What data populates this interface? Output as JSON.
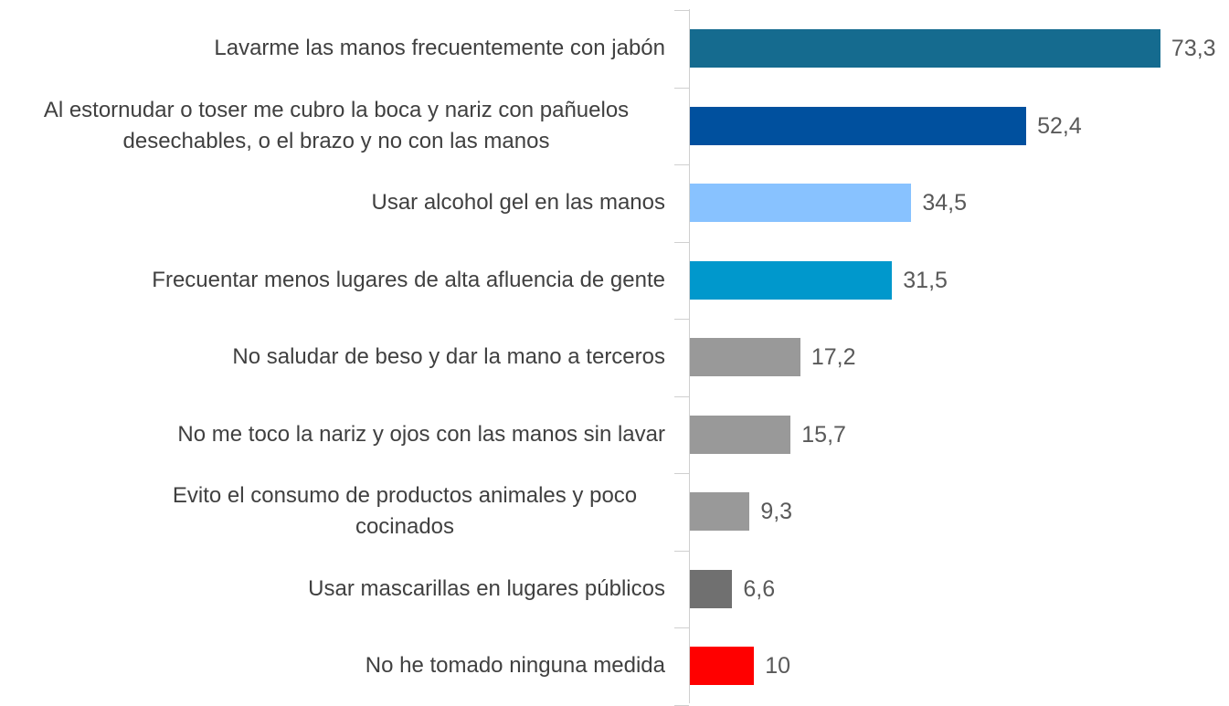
{
  "chart_data": {
    "type": "bar",
    "orientation": "horizontal",
    "categories": [
      "Lavarme las manos frecuentemente con jabón",
      "Al estornudar o toser me cubro la boca y nariz con pañuelos desechables, o el brazo y no con las manos",
      "Usar alcohol gel en las manos",
      "Frecuentar menos lugares de alta afluencia de gente",
      "No saludar de beso y dar la mano a terceros",
      "No me toco la nariz y ojos con las manos sin lavar",
      "Evito el consumo de productos animales y poco cocinados",
      "Usar mascarillas en lugares públicos",
      "No he tomado ninguna medida"
    ],
    "values": [
      73.3,
      52.4,
      34.5,
      31.5,
      17.2,
      15.7,
      9.3,
      6.6,
      10
    ],
    "value_labels": [
      "73,3",
      "52,4",
      "34,5",
      "31,5",
      "17,2",
      "15,7",
      "9,3",
      "6,6",
      "10"
    ],
    "colors": [
      "#156b8f",
      "#00509e",
      "#88c2ff",
      "#0098cc",
      "#999999",
      "#999999",
      "#999999",
      "#707070",
      "#ff0000"
    ],
    "xlim": [
      0,
      80
    ]
  }
}
